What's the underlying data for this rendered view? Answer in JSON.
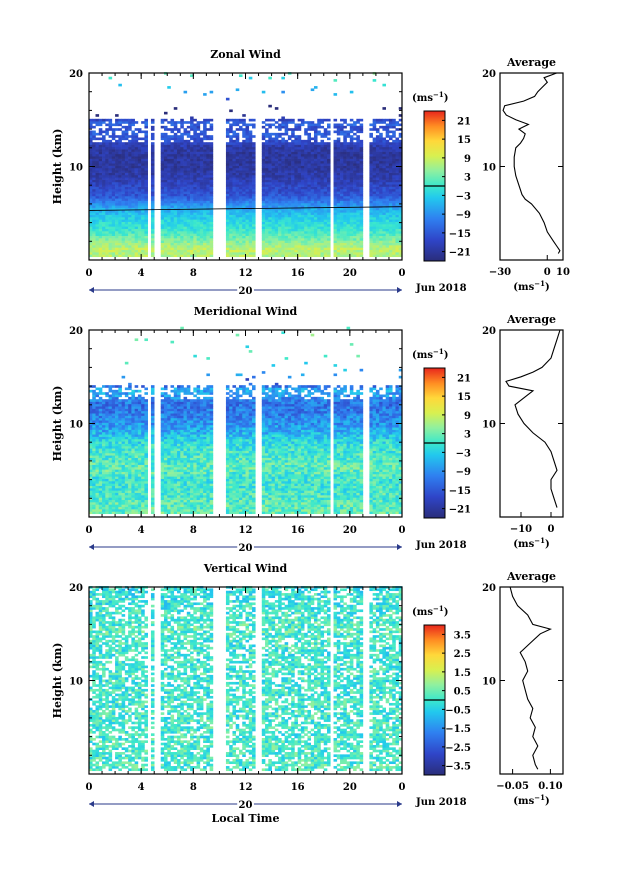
{
  "chart_data": [
    {
      "type": "heatmap",
      "title": "Zonal Wind",
      "ylabel": "Height (km)",
      "ylim": [
        0,
        20
      ],
      "yticks": [
        "10",
        "20"
      ],
      "xticks": [
        "0",
        "4",
        "8",
        "12",
        "16",
        "20",
        "0"
      ],
      "date_label": "Jun 2018",
      "day_label": "20",
      "colorbar": {
        "unit": "(ms",
        "unit_exp": "−1",
        "unit_close": ")",
        "ticks": [
          "21",
          "15",
          "9",
          "3",
          "−3",
          "−9",
          "−15",
          "−21"
        ],
        "range": [
          -24,
          24
        ]
      },
      "average": {
        "title": "Average",
        "xticks": [
          "−30",
          "0",
          "10"
        ],
        "xlim": [
          -30,
          10
        ],
        "yticks": [
          "10",
          "20"
        ],
        "unit": "(ms",
        "unit_exp": "−1",
        "unit_close": ")",
        "profile": [
          [
            0.7,
            7
          ],
          [
            1,
            8
          ],
          [
            1.5,
            6
          ],
          [
            2,
            4
          ],
          [
            3,
            0
          ],
          [
            4,
            -2
          ],
          [
            5,
            -5
          ],
          [
            6,
            -10
          ],
          [
            6.5,
            -14
          ],
          [
            7,
            -16
          ],
          [
            8,
            -18
          ],
          [
            9,
            -20
          ],
          [
            10,
            -21
          ],
          [
            11,
            -21
          ],
          [
            12,
            -20
          ],
          [
            12.5,
            -17
          ],
          [
            13,
            -15
          ],
          [
            13.5,
            -14
          ],
          [
            14,
            -18
          ],
          [
            14.5,
            -12
          ],
          [
            15,
            -20
          ],
          [
            15.5,
            -26
          ],
          [
            16,
            -28
          ],
          [
            16.5,
            -27
          ],
          [
            17,
            -15
          ],
          [
            17.5,
            -8
          ],
          [
            18,
            -6
          ],
          [
            18.5,
            -3
          ],
          [
            19,
            0
          ],
          [
            19.5,
            -2
          ],
          [
            20,
            6
          ]
        ]
      },
      "data_gaps_hours": [
        [
          4.3,
          4.6
        ],
        [
          5.0,
          5.5
        ],
        [
          9.5,
          10.3
        ],
        [
          12.7,
          13.1
        ],
        [
          18.3,
          18.6
        ],
        [
          20.8,
          21.3
        ]
      ],
      "data_top_km": 15,
      "jet_level_km": 11.5,
      "zero_wind_km": 5.3
    },
    {
      "type": "heatmap",
      "title": "Meridional Wind",
      "ylabel": "Height (km)",
      "ylim": [
        0,
        20
      ],
      "yticks": [
        "10",
        "20"
      ],
      "xticks": [
        "0",
        "4",
        "8",
        "12",
        "16",
        "20",
        "0"
      ],
      "date_label": "Jun 2018",
      "day_label": "20",
      "colorbar": {
        "unit": "(ms",
        "unit_exp": "−1",
        "unit_close": ")",
        "ticks": [
          "21",
          "15",
          "9",
          "3",
          "−3",
          "−9",
          "−15",
          "−21"
        ],
        "range": [
          -24,
          24
        ]
      },
      "average": {
        "title": "Average",
        "xticks": [
          "−10",
          "0"
        ],
        "xlim": [
          -17,
          4
        ],
        "yticks": [
          "10",
          "20"
        ],
        "unit": "(ms",
        "unit_exp": "−1",
        "unit_close": ")",
        "profile": [
          [
            1,
            2
          ],
          [
            2,
            1
          ],
          [
            3,
            0
          ],
          [
            4,
            0
          ],
          [
            5,
            2
          ],
          [
            6,
            1
          ],
          [
            7,
            0
          ],
          [
            8,
            -2
          ],
          [
            9,
            -6
          ],
          [
            10,
            -9
          ],
          [
            11,
            -11
          ],
          [
            12,
            -12
          ],
          [
            13,
            -8
          ],
          [
            13.5,
            -6
          ],
          [
            14,
            -14
          ],
          [
            14.5,
            -15
          ],
          [
            15,
            -10
          ],
          [
            15.5,
            -6
          ],
          [
            16,
            -3
          ],
          [
            17,
            0
          ],
          [
            18,
            1
          ],
          [
            19,
            2
          ],
          [
            20,
            3
          ]
        ]
      },
      "data_gaps_hours": [
        [
          4.3,
          4.6
        ],
        [
          5.0,
          5.5
        ],
        [
          9.5,
          10.3
        ],
        [
          12.7,
          13.1
        ],
        [
          18.3,
          18.6
        ],
        [
          20.8,
          21.3
        ]
      ],
      "data_top_km": 14
    },
    {
      "type": "heatmap",
      "title": "Vertical Wind",
      "ylabel": "Height (km)",
      "xlabel": "Local Time",
      "ylim": [
        0,
        20
      ],
      "yticks": [
        "10",
        "20"
      ],
      "xticks": [
        "0",
        "4",
        "8",
        "12",
        "16",
        "20",
        "0"
      ],
      "date_label": "Jun 2018",
      "day_label": "20",
      "colorbar": {
        "unit": "(ms",
        "unit_exp": "−1",
        "unit_close": ")",
        "ticks": [
          "3.5",
          "2.5",
          "1.5",
          "0.5",
          "−0.5",
          "−1.5",
          "−2.5",
          "−3.5"
        ],
        "range": [
          -4,
          4
        ]
      },
      "average": {
        "title": "Average",
        "xticks": [
          "−0.05",
          "0.10"
        ],
        "xlim": [
          -0.1,
          0.15
        ],
        "yticks": [
          "10",
          "20"
        ],
        "unit": "(ms",
        "unit_exp": "−1",
        "unit_close": ")",
        "profile": [
          [
            0.5,
            0.05
          ],
          [
            1,
            0.04
          ],
          [
            2,
            0.03
          ],
          [
            3,
            0.05
          ],
          [
            4,
            0.03
          ],
          [
            5,
            0.04
          ],
          [
            6,
            0.02
          ],
          [
            7,
            0.03
          ],
          [
            8,
            0.01
          ],
          [
            9,
            0.0
          ],
          [
            10,
            -0.01
          ],
          [
            11,
            0.01
          ],
          [
            12,
            0.0
          ],
          [
            13,
            -0.02
          ],
          [
            14,
            0.02
          ],
          [
            15,
            0.06
          ],
          [
            15.5,
            0.1
          ],
          [
            16,
            0.03
          ],
          [
            17,
            0.01
          ],
          [
            18,
            -0.03
          ],
          [
            19,
            -0.05
          ],
          [
            20,
            -0.06
          ]
        ]
      },
      "data_gaps_hours": [
        [
          4.3,
          4.6
        ],
        [
          5.0,
          5.5
        ],
        [
          9.5,
          10.3
        ],
        [
          12.7,
          13.1
        ],
        [
          18.3,
          18.6
        ],
        [
          20.8,
          21.3
        ]
      ],
      "data_top_km": 20
    }
  ]
}
